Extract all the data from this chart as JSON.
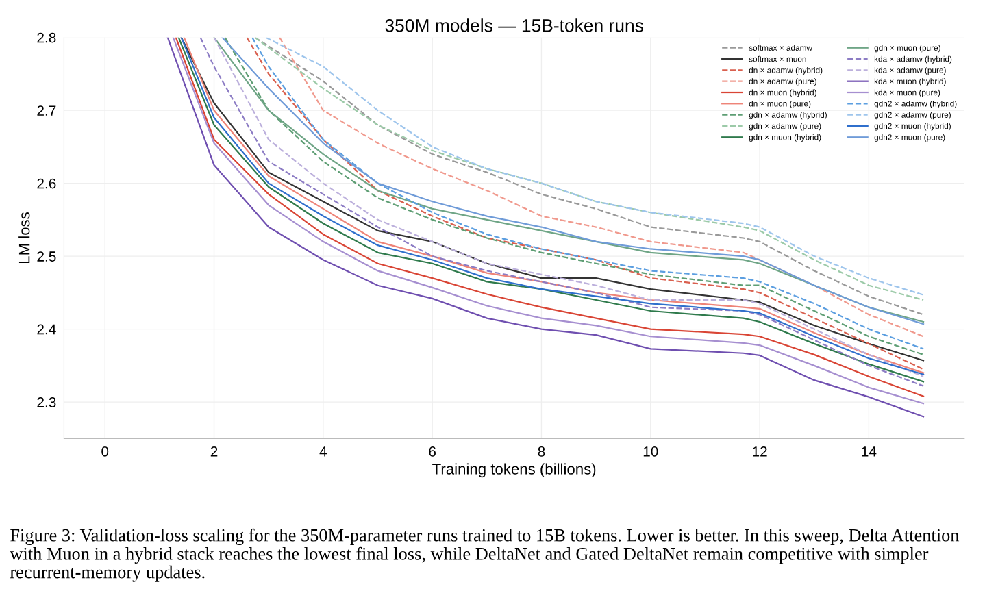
{
  "chart_data": {
    "type": "line",
    "title": "350M models — 15B-token runs",
    "xlabel": "Training tokens (billions)",
    "ylabel": "LM loss",
    "xlim": [
      -0.75,
      15.75
    ],
    "ylim": [
      2.25,
      2.8
    ],
    "xticks": [
      0,
      2,
      4,
      6,
      8,
      10,
      12,
      14
    ],
    "yticks": [
      2.3,
      2.4,
      2.5,
      2.6,
      2.7,
      2.8
    ],
    "grid": true,
    "legend": "top right",
    "annotations": [
      "Figure 3: Validation-loss scaling for the 350M-parameter runs trained to 15B tokens. Lower is better. In this sweep, Delta Attention with Muon in a hybrid stack reaches the lowest final loss, while DeltaNet and Gated DeltaNet remain competitive with simpler recurrent-memory updates."
    ],
    "series": [
      {
        "name": "softmax × adamw",
        "color": "#999999",
        "line_style": "dashed",
        "x": [
          2.75,
          4,
          5,
          6,
          7,
          8,
          9,
          10,
          11.7,
          12,
          13,
          14,
          15
        ],
        "values": [
          2.8,
          2.74,
          2.68,
          2.64,
          2.615,
          2.585,
          2.565,
          2.54,
          2.525,
          2.52,
          2.48,
          2.445,
          2.42
        ]
      },
      {
        "name": "softmax × muon",
        "color": "#333333",
        "line_style": "solid",
        "x": [
          1.4,
          2,
          3,
          4,
          5,
          6,
          7,
          8,
          9,
          10,
          11.7,
          12,
          13,
          14,
          15
        ],
        "values": [
          2.8,
          2.71,
          2.615,
          2.575,
          2.535,
          2.52,
          2.49,
          2.47,
          2.47,
          2.455,
          2.44,
          2.437,
          2.405,
          2.38,
          2.357
        ]
      },
      {
        "name": "dn × adamw (hybrid)",
        "color": "#d9604f",
        "line_style": "dashed",
        "x": [
          2.6,
          3,
          4,
          5,
          6,
          7,
          8,
          9,
          10,
          11.7,
          12,
          13,
          14,
          15
        ],
        "values": [
          2.8,
          2.75,
          2.66,
          2.59,
          2.555,
          2.525,
          2.51,
          2.495,
          2.47,
          2.455,
          2.45,
          2.415,
          2.38,
          2.345
        ]
      },
      {
        "name": "dn × adamw (pure)",
        "color": "#f0998d",
        "line_style": "dashed",
        "x": [
          3.2,
          4,
          5,
          6,
          7,
          8,
          9,
          10,
          11.7,
          12,
          13,
          14,
          15
        ],
        "values": [
          2.8,
          2.7,
          2.655,
          2.62,
          2.59,
          2.555,
          2.54,
          2.52,
          2.505,
          2.495,
          2.46,
          2.42,
          2.39
        ]
      },
      {
        "name": "dn × muon (hybrid)",
        "color": "#d94535",
        "line_style": "solid",
        "x": [
          1.3,
          2,
          3,
          4,
          5,
          6,
          7,
          8,
          9,
          10,
          11.7,
          12,
          13,
          14,
          15
        ],
        "values": [
          2.8,
          2.66,
          2.585,
          2.53,
          2.49,
          2.47,
          2.448,
          2.43,
          2.415,
          2.4,
          2.393,
          2.39,
          2.365,
          2.335,
          2.308
        ]
      },
      {
        "name": "dn × muon (pure)",
        "color": "#ee8478",
        "line_style": "solid",
        "x": [
          1.45,
          2,
          3,
          4,
          5,
          6,
          7,
          8,
          9,
          10,
          11.7,
          12,
          13,
          14,
          15
        ],
        "values": [
          2.8,
          2.7,
          2.61,
          2.565,
          2.52,
          2.5,
          2.477,
          2.465,
          2.45,
          2.44,
          2.43,
          2.428,
          2.395,
          2.365,
          2.34
        ]
      },
      {
        "name": "gdn × adamw (hybrid)",
        "color": "#5e9e74",
        "line_style": "dashed",
        "x": [
          2.2,
          3,
          4,
          5,
          6,
          7,
          8,
          9,
          10,
          11.7,
          12,
          13,
          14,
          15
        ],
        "values": [
          2.8,
          2.7,
          2.63,
          2.58,
          2.55,
          2.525,
          2.505,
          2.49,
          2.475,
          2.46,
          2.46,
          2.425,
          2.39,
          2.365
        ]
      },
      {
        "name": "gdn × adamw (pure)",
        "color": "#9ccaa8",
        "line_style": "dashed",
        "x": [
          2.75,
          4,
          5,
          6,
          7,
          8,
          9,
          10,
          11.7,
          12,
          13,
          14,
          15
        ],
        "values": [
          2.8,
          2.73,
          2.68,
          2.645,
          2.62,
          2.6,
          2.575,
          2.56,
          2.54,
          2.535,
          2.495,
          2.46,
          2.44
        ]
      },
      {
        "name": "gdn × muon (hybrid)",
        "color": "#2f7a4c",
        "line_style": "solid",
        "x": [
          1.35,
          2,
          3,
          4,
          5,
          6,
          7,
          8,
          9,
          10,
          11.7,
          12,
          13,
          14,
          15
        ],
        "values": [
          2.8,
          2.68,
          2.595,
          2.545,
          2.505,
          2.49,
          2.465,
          2.455,
          2.44,
          2.425,
          2.415,
          2.41,
          2.38,
          2.352,
          2.328
        ]
      },
      {
        "name": "gdn × muon (pure)",
        "color": "#6fa586",
        "line_style": "solid",
        "x": [
          2.0,
          3,
          4,
          5,
          6,
          7,
          8,
          9,
          10,
          11.7,
          12,
          13,
          14,
          15
        ],
        "values": [
          2.8,
          2.7,
          2.64,
          2.59,
          2.565,
          2.55,
          2.535,
          2.52,
          2.505,
          2.495,
          2.49,
          2.46,
          2.43,
          2.41
        ]
      },
      {
        "name": "kda × adamw (hybrid)",
        "color": "#8c7cc4",
        "line_style": "dashed",
        "x": [
          1.75,
          2,
          3,
          4,
          5,
          6,
          7,
          8,
          9,
          10,
          11.7,
          12,
          13,
          14,
          15
        ],
        "values": [
          2.8,
          2.76,
          2.63,
          2.585,
          2.54,
          2.5,
          2.48,
          2.465,
          2.45,
          2.43,
          2.425,
          2.42,
          2.385,
          2.35,
          2.322
        ]
      },
      {
        "name": "kda × adamw (pure)",
        "color": "#bcb0dc",
        "line_style": "dashed",
        "x": [
          2.0,
          3,
          4,
          5,
          6,
          7,
          8,
          9,
          10,
          11.7,
          12,
          13,
          14,
          15
        ],
        "values": [
          2.8,
          2.66,
          2.6,
          2.55,
          2.52,
          2.49,
          2.475,
          2.46,
          2.44,
          2.44,
          2.435,
          2.4,
          2.365,
          2.335
        ]
      },
      {
        "name": "kda × muon (hybrid)",
        "color": "#6f4fb0",
        "line_style": "solid",
        "x": [
          1.15,
          2,
          3,
          4,
          5,
          6,
          7,
          8,
          9,
          10,
          11.7,
          12,
          13,
          14,
          15
        ],
        "values": [
          2.8,
          2.625,
          2.54,
          2.495,
          2.46,
          2.442,
          2.415,
          2.4,
          2.392,
          2.373,
          2.367,
          2.364,
          2.33,
          2.307,
          2.28
        ]
      },
      {
        "name": "kda × muon (pure)",
        "color": "#a68fd0",
        "line_style": "solid",
        "x": [
          1.25,
          2,
          3,
          4,
          5,
          6,
          7,
          8,
          9,
          10,
          11.7,
          12,
          13,
          14,
          15
        ],
        "values": [
          2.8,
          2.655,
          2.57,
          2.52,
          2.48,
          2.457,
          2.432,
          2.415,
          2.405,
          2.39,
          2.381,
          2.378,
          2.35,
          2.32,
          2.298
        ]
      },
      {
        "name": "gdn2 × adamw (hybrid)",
        "color": "#5b9ee0",
        "line_style": "dashed",
        "x": [
          2.7,
          3,
          4,
          5,
          6,
          7,
          8,
          9,
          10,
          11.7,
          12,
          13,
          14,
          15
        ],
        "values": [
          2.8,
          2.76,
          2.66,
          2.6,
          2.56,
          2.53,
          2.51,
          2.495,
          2.48,
          2.47,
          2.465,
          2.435,
          2.4,
          2.373
        ]
      },
      {
        "name": "gdn2 × adamw (pure)",
        "color": "#9ec5ec",
        "line_style": "dashed",
        "x": [
          2.95,
          4,
          5,
          6,
          7,
          8,
          9,
          10,
          11.7,
          12,
          13,
          14,
          15
        ],
        "values": [
          2.8,
          2.76,
          2.7,
          2.65,
          2.62,
          2.6,
          2.575,
          2.56,
          2.545,
          2.54,
          2.5,
          2.47,
          2.447
        ]
      },
      {
        "name": "gdn2 × muon (hybrid)",
        "color": "#2f6fcc",
        "line_style": "solid",
        "x": [
          1.4,
          2,
          3,
          4,
          5,
          6,
          7,
          8,
          9,
          10,
          11.7,
          12,
          13,
          14,
          15
        ],
        "values": [
          2.8,
          2.69,
          2.6,
          2.555,
          2.515,
          2.495,
          2.47,
          2.455,
          2.445,
          2.435,
          2.425,
          2.422,
          2.39,
          2.36,
          2.338
        ]
      },
      {
        "name": "gdn2 × muon (pure)",
        "color": "#6f9bd8",
        "line_style": "solid",
        "x": [
          2.15,
          3,
          4,
          5,
          6,
          7,
          8,
          9,
          10,
          11.7,
          12,
          13,
          14,
          15
        ],
        "values": [
          2.8,
          2.73,
          2.655,
          2.6,
          2.575,
          2.555,
          2.54,
          2.52,
          2.51,
          2.5,
          2.495,
          2.46,
          2.43,
          2.407
        ]
      }
    ]
  }
}
